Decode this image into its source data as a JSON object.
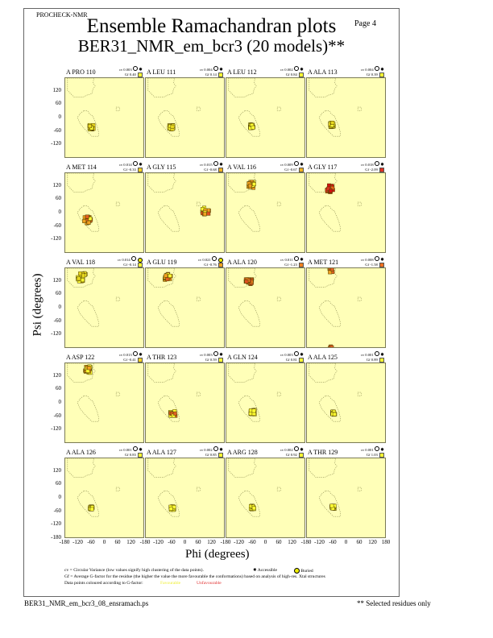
{
  "header": {
    "program": "PROCHECK-NMR",
    "title": "Ensemble Ramachandran plots",
    "subtitle": "BER31_NMR_em_bcr3 (20 models)**",
    "page": "Page  4"
  },
  "footer": {
    "filename": "BER31_NMR_em_bcr3_08_ensramach.ps",
    "note": "** Selected residues only"
  },
  "legend": {
    "cv_text": "cv = Circular Variance (low values signify high clustering of the data points).",
    "accessible": "Accessible",
    "buried": "Buried",
    "gf_text": "Gf = Average G-factor for the residue (the higher the value the more favourable the conformations) based on analysis of high-res. Xtal structures",
    "colour_text": "Data points coloured according to G-factor:",
    "favourable": "Favourable",
    "unfavourable": "Unfavourable"
  },
  "colors": {
    "panel_bg": "#ffffb8",
    "favourable": "#ffff33",
    "mid": "#f0a020",
    "unfavourable": "#e03020"
  },
  "chart_data": {
    "type": "scatter",
    "xlabel": "Phi (degrees)",
    "ylabel": "Psi (degrees)",
    "xlim": [
      -180,
      180
    ],
    "ylim": [
      -180,
      180
    ],
    "xticks": [
      "-180",
      "-120",
      "-60",
      "0",
      "60",
      "120",
      "180"
    ],
    "yticks": [
      "180",
      "120",
      "60",
      "0",
      "-60",
      "-120",
      "-180"
    ],
    "models": 20,
    "panels": [
      {
        "label": "A PRO 110",
        "cv": "cv 0.003",
        "gf": "Gf 0.40",
        "burial": "accessible",
        "gf_color": "#ffff33",
        "clusters": [
          {
            "phi": -62,
            "psi": -40,
            "spread": 10,
            "colors": [
              "#ffff33",
              "#e8d820"
            ]
          }
        ]
      },
      {
        "label": "A LEU 111",
        "cv": "cv 0.004",
        "gf": "Gf 0.14",
        "burial": "accessible",
        "gf_color": "#ffff33",
        "clusters": [
          {
            "phi": -65,
            "psi": -40,
            "spread": 10,
            "colors": [
              "#ffff33",
              "#e8d820"
            ]
          }
        ]
      },
      {
        "label": "A LEU 112",
        "cv": "cv 0.002",
        "gf": "Gf 0.84",
        "burial": "accessible",
        "gf_color": "#ffff33",
        "clusters": [
          {
            "phi": -65,
            "psi": -35,
            "spread": 8,
            "colors": [
              "#ffff33"
            ]
          }
        ]
      },
      {
        "label": "A ALA 113",
        "cv": "cv 0.004",
        "gf": "Gf 0.39",
        "burial": "accessible",
        "gf_color": "#ffff33",
        "clusters": [
          {
            "phi": -65,
            "psi": -28,
            "spread": 10,
            "colors": [
              "#ffff33",
              "#e8d820"
            ]
          }
        ]
      },
      {
        "label": "A MET 114",
        "cv": "cv 0.014",
        "gf": "Gf -0.33",
        "burial": "accessible",
        "gf_color": "#f8d020",
        "clusters": [
          {
            "phi": -80,
            "psi": -30,
            "spread": 16,
            "colors": [
              "#ffff33",
              "#f0a020",
              "#e06020"
            ]
          }
        ]
      },
      {
        "label": "A GLY 115",
        "cv": "cv 0.015",
        "gf": "Gf -0.68",
        "burial": "accessible",
        "gf_color": "#f0b020",
        "clusters": [
          {
            "phi": 90,
            "psi": 12,
            "spread": 16,
            "colors": [
              "#ffff33",
              "#f0a020",
              "#e05020"
            ]
          }
        ]
      },
      {
        "label": "A VAL 116",
        "cv": "cv 0.009",
        "gf": "Gf -0.67",
        "burial": "accessible",
        "gf_color": "#f0b020",
        "clusters": [
          {
            "phi": -68,
            "psi": 128,
            "spread": 14,
            "colors": [
              "#ffff33",
              "#f0a020"
            ]
          }
        ]
      },
      {
        "label": "A GLY 117",
        "cv": "cv 0.018",
        "gf": "Gf -2.09",
        "burial": "accessible",
        "gf_color": "#e03020",
        "clusters": [
          {
            "phi": -75,
            "psi": 110,
            "spread": 16,
            "colors": [
              "#e03020",
              "#d01010",
              "#f06020"
            ]
          }
        ]
      },
      {
        "label": "A VAL 118",
        "cv": "cv 0.014",
        "gf": "Gf -0.14",
        "burial": "buried",
        "gf_color": "#ffff33",
        "clusters": [
          {
            "phi": -105,
            "psi": 140,
            "spread": 18,
            "colors": [
              "#ffff33",
              "#e8d820"
            ]
          }
        ]
      },
      {
        "label": "A GLU 119",
        "cv": "cv 0.021",
        "gf": "Gf -0.76",
        "burial": "buried",
        "gf_color": "#f0a020",
        "clusters": [
          {
            "phi": -80,
            "psi": 140,
            "spread": 16,
            "colors": [
              "#ffff33",
              "#f0a020",
              "#e06020"
            ]
          }
        ]
      },
      {
        "label": "A ALA 120",
        "cv": "cv 0.011",
        "gf": "Gf -1.23",
        "burial": "accessible",
        "gf_color": "#f08020",
        "clusters": [
          {
            "phi": -78,
            "psi": 122,
            "spread": 14,
            "colors": [
              "#f08020",
              "#e05020"
            ]
          }
        ]
      },
      {
        "label": "A MET 121",
        "cv": "cv 0.008",
        "gf": "Gf -1.58",
        "burial": "accessible",
        "gf_color": "#f07020",
        "clusters": [
          {
            "phi": -70,
            "psi": 170,
            "spread": 8,
            "colors": [
              "#f0a020",
              "#e06020"
            ]
          },
          {
            "phi": -70,
            "psi": -176,
            "spread": 6,
            "colors": [
              "#e06020"
            ]
          }
        ]
      },
      {
        "label": "A ASP 122",
        "cv": "cv 0.013",
        "gf": "Gf -0.41",
        "burial": "accessible",
        "gf_color": "#f8d020",
        "clusters": [
          {
            "phi": -80,
            "psi": 152,
            "spread": 14,
            "colors": [
              "#ffff33",
              "#f0a020"
            ]
          }
        ]
      },
      {
        "label": "A THR 123",
        "cv": "cv 0.003",
        "gf": "Gf 0.59",
        "burial": "accessible",
        "gf_color": "#ffff33",
        "clusters": [
          {
            "phi": -58,
            "psi": -45,
            "spread": 12,
            "colors": [
              "#ffff33",
              "#e06020"
            ]
          }
        ]
      },
      {
        "label": "A GLN 124",
        "cv": "cv 0.003",
        "gf": "Gf 0.81",
        "burial": "accessible",
        "gf_color": "#ffff33",
        "clusters": [
          {
            "phi": -62,
            "psi": -38,
            "spread": 10,
            "colors": [
              "#ffff33"
            ]
          }
        ]
      },
      {
        "label": "A ALA 125",
        "cv": "cv 0.001",
        "gf": "Gf 0.89",
        "burial": "accessible",
        "gf_color": "#ffff33",
        "clusters": [
          {
            "phi": -60,
            "psi": -42,
            "spread": 7,
            "colors": [
              "#ffff33"
            ]
          }
        ]
      },
      {
        "label": "A ALA 126",
        "cv": "cv 0.001",
        "gf": "Gf 0.83",
        "burial": "accessible",
        "gf_color": "#ffff33",
        "clusters": [
          {
            "phi": -62,
            "psi": -42,
            "spread": 7,
            "colors": [
              "#ffff33"
            ]
          }
        ]
      },
      {
        "label": "A ALA 127",
        "cv": "cv 0.002",
        "gf": "Gf 0.85",
        "burial": "accessible",
        "gf_color": "#ffff33",
        "clusters": [
          {
            "phi": -60,
            "psi": -42,
            "spread": 8,
            "colors": [
              "#ffff33"
            ]
          }
        ]
      },
      {
        "label": "A ARG 128",
        "cv": "cv 0.002",
        "gf": "Gf 0.92",
        "burial": "accessible",
        "gf_color": "#ffff33",
        "clusters": [
          {
            "phi": -62,
            "psi": -40,
            "spread": 8,
            "colors": [
              "#ffff33"
            ]
          }
        ]
      },
      {
        "label": "A THR 129",
        "cv": "cv 0.001",
        "gf": "Gf 1.03",
        "burial": "accessible",
        "gf_color": "#ffff33",
        "clusters": [
          {
            "phi": -62,
            "psi": -38,
            "spread": 7,
            "colors": [
              "#ffff33"
            ]
          }
        ]
      }
    ]
  }
}
